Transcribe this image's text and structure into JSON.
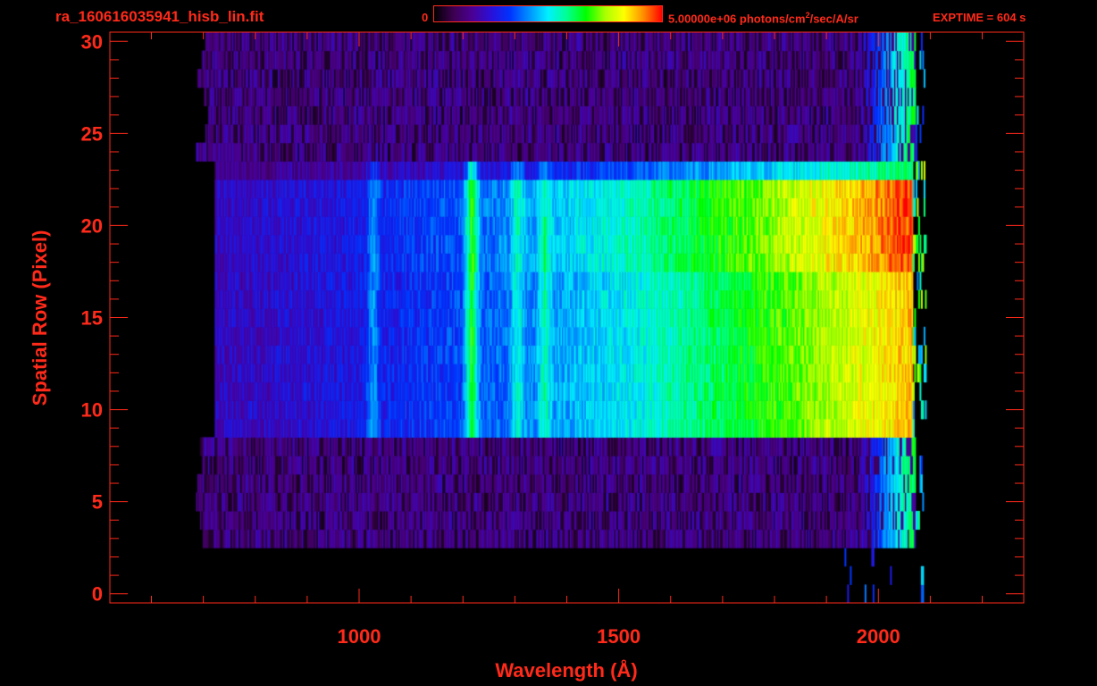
{
  "header": {
    "file_name": "ra_160616035941_hisb_lin.fit",
    "colorbar_min": "0",
    "colorbar_max_prefix": "5.00000e+06 photons/cm",
    "colorbar_max_exp": "2",
    "colorbar_max_suffix": "/sec/A/sr",
    "exptime": "EXPTIME = 604 s"
  },
  "colors": {
    "axis": "#ff2a1a",
    "background": "#000000",
    "colormap": [
      "#000000",
      "#3c0050",
      "#4b0094",
      "#2a10d8",
      "#0033ff",
      "#0090ff",
      "#00f0ff",
      "#00ff90",
      "#00ff00",
      "#a8ff00",
      "#ffff00",
      "#ff9000",
      "#ff0000"
    ]
  },
  "chart_data": {
    "type": "heatmap",
    "xlabel": "Wavelength (Å)",
    "ylabel": "Spatial Row (Pixel)",
    "xlim": [
      520,
      2280
    ],
    "ylim": [
      -0.5,
      30.5
    ],
    "x_ticks": [
      1000,
      1500,
      2000
    ],
    "x_tick_labels": [
      "1000",
      "1500",
      "2000"
    ],
    "y_ticks": [
      0,
      5,
      10,
      15,
      20,
      25,
      30
    ],
    "y_tick_labels": [
      "0",
      "5",
      "10",
      "15",
      "20",
      "25",
      "30"
    ],
    "colorbar_range": [
      0,
      5000000
    ],
    "units": "photons/cm^2/sec/A/sr",
    "rows": 31,
    "signal_range_wavelength": [
      690,
      2065
    ],
    "bright_slit_rows": [
      9,
      23
    ],
    "emission_features_wavelength": [
      1026,
      1216,
      1304,
      1356
    ],
    "grid": false
  }
}
